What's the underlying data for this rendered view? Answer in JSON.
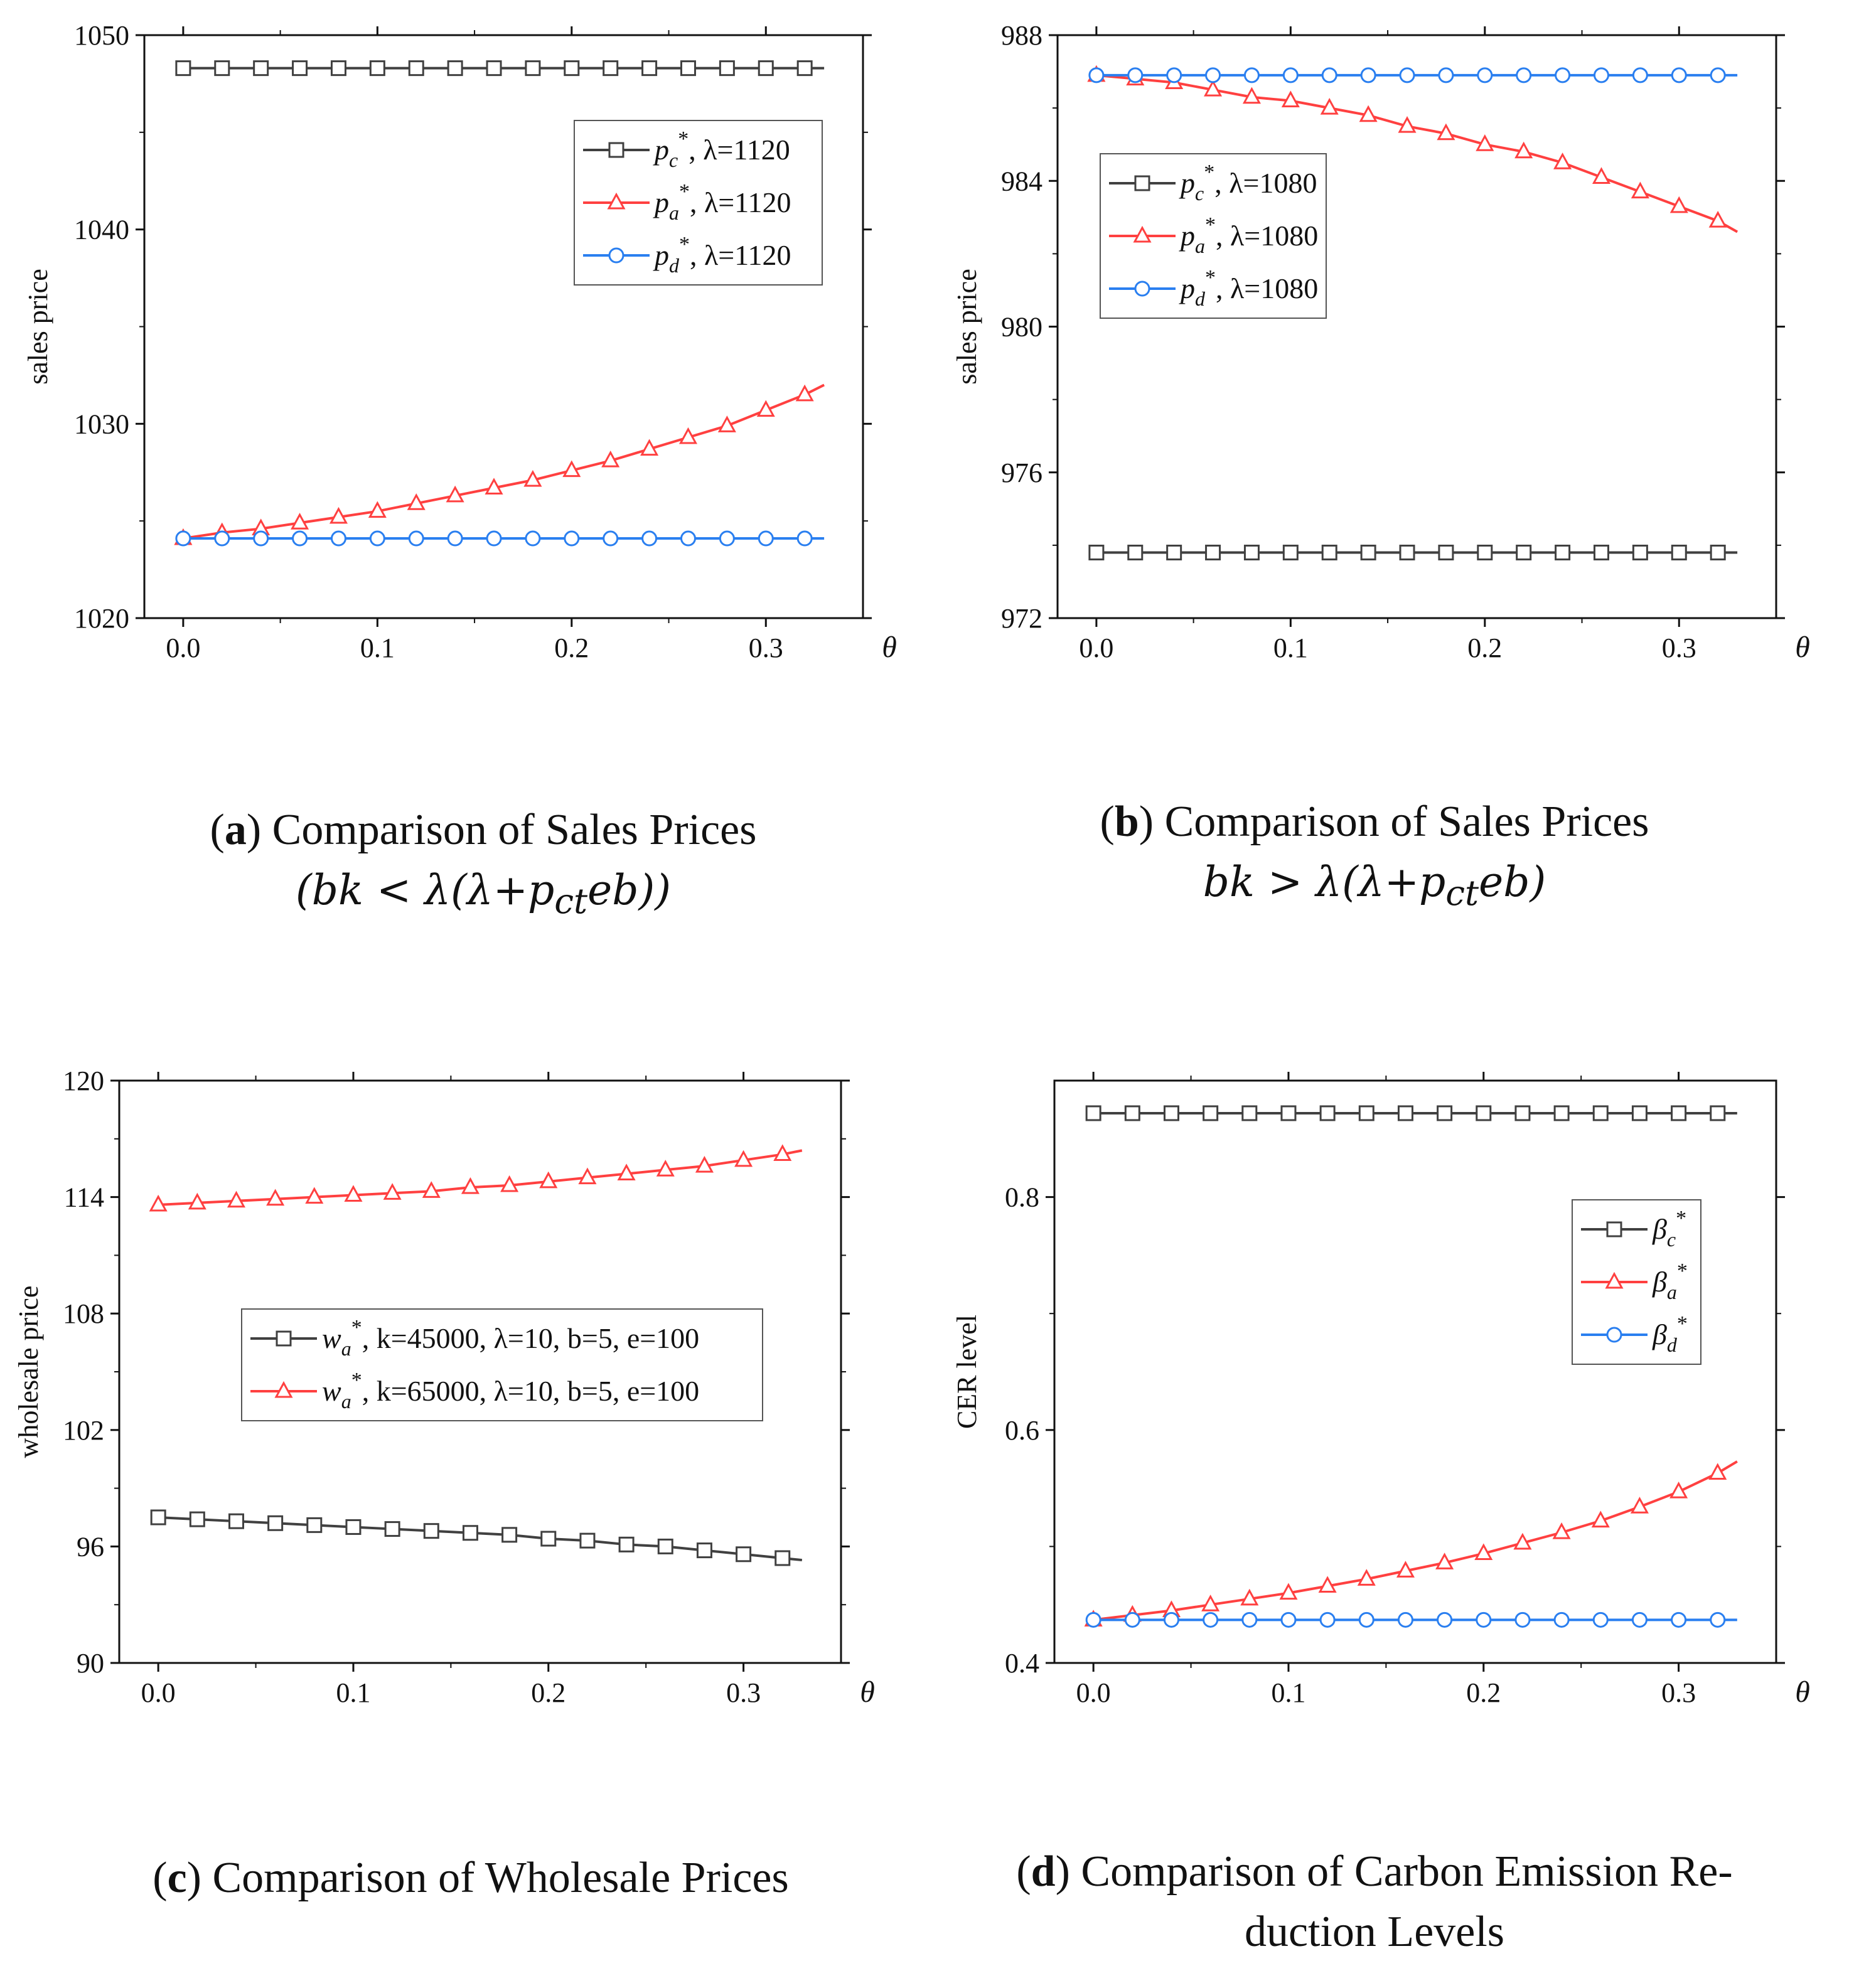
{
  "chart_data": [
    {
      "id": "a",
      "type": "line",
      "ylabel": "sales price",
      "xlabel": "θ",
      "xlim": [
        -0.02,
        0.35
      ],
      "ylim": [
        1020,
        1050
      ],
      "xticks": [
        "0.0",
        "0.1",
        "0.2",
        "0.3"
      ],
      "xtick_values": [
        0,
        0.1,
        0.2,
        0.3
      ],
      "yticks": [
        "1020",
        "1030",
        "1040",
        "1050"
      ],
      "ytick_values": [
        1020,
        1030,
        1040,
        1050
      ],
      "legend_position": "top-right",
      "x": [
        0,
        0.02,
        0.04,
        0.06,
        0.08,
        0.1,
        0.12,
        0.14,
        0.16,
        0.18,
        0.2,
        0.22,
        0.24,
        0.26,
        0.28,
        0.3,
        0.32,
        0.33
      ],
      "series": [
        {
          "name": "p_c*, λ=1120",
          "symbol": "p",
          "sub": "c",
          "label": ", λ=1120",
          "color": "#404040",
          "marker": "square",
          "values": [
            1048.3,
            1048.3,
            1048.3,
            1048.3,
            1048.3,
            1048.3,
            1048.3,
            1048.3,
            1048.3,
            1048.3,
            1048.3,
            1048.3,
            1048.3,
            1048.3,
            1048.3,
            1048.3,
            1048.3,
            1048.3
          ]
        },
        {
          "name": "p_a*, λ=1120",
          "symbol": "p",
          "sub": "a",
          "label": ", λ=1120",
          "color": "#ff4040",
          "marker": "triangle",
          "values": [
            1024.1,
            1024.4,
            1024.6,
            1024.9,
            1025.2,
            1025.5,
            1025.9,
            1026.3,
            1026.7,
            1027.1,
            1027.6,
            1028.1,
            1028.7,
            1029.3,
            1029.9,
            1030.7,
            1031.5,
            1032.0
          ]
        },
        {
          "name": "p_d*, λ=1120",
          "symbol": "p",
          "sub": "d",
          "label": ", λ=1120",
          "color": "#2a7ff0",
          "marker": "circle",
          "values": [
            1024.1,
            1024.1,
            1024.1,
            1024.1,
            1024.1,
            1024.1,
            1024.1,
            1024.1,
            1024.1,
            1024.1,
            1024.1,
            1024.1,
            1024.1,
            1024.1,
            1024.1,
            1024.1,
            1024.1,
            1024.1
          ]
        }
      ]
    },
    {
      "id": "b",
      "type": "line",
      "ylabel": "sales price",
      "xlabel": "θ",
      "xlim": [
        -0.02,
        0.35
      ],
      "ylim": [
        972,
        988
      ],
      "xticks": [
        "0.0",
        "0.1",
        "0.2",
        "0.3"
      ],
      "xtick_values": [
        0,
        0.1,
        0.2,
        0.3
      ],
      "yticks": [
        "972",
        "976",
        "980",
        "984",
        "988"
      ],
      "ytick_values": [
        972,
        976,
        980,
        984,
        988
      ],
      "legend_position": "top-left",
      "x": [
        0,
        0.02,
        0.04,
        0.06,
        0.08,
        0.1,
        0.12,
        0.14,
        0.16,
        0.18,
        0.2,
        0.22,
        0.24,
        0.26,
        0.28,
        0.3,
        0.32,
        0.33
      ],
      "series": [
        {
          "name": "p_c*, λ=1080",
          "symbol": "p",
          "sub": "c",
          "label": ", λ=1080",
          "color": "#404040",
          "marker": "square",
          "values": [
            973.8,
            973.8,
            973.8,
            973.8,
            973.8,
            973.8,
            973.8,
            973.8,
            973.8,
            973.8,
            973.8,
            973.8,
            973.8,
            973.8,
            973.8,
            973.8,
            973.8,
            973.8
          ]
        },
        {
          "name": "p_a*, λ=1080",
          "symbol": "p",
          "sub": "a",
          "label": ", λ=1080",
          "color": "#ff4040",
          "marker": "triangle",
          "values": [
            986.9,
            986.8,
            986.7,
            986.5,
            986.3,
            986.2,
            986.0,
            985.8,
            985.5,
            985.3,
            985.0,
            984.8,
            984.5,
            984.1,
            983.7,
            983.3,
            982.9,
            982.6
          ]
        },
        {
          "name": "p_d*, λ=1080",
          "symbol": "p",
          "sub": "d",
          "label": ", λ=1080",
          "color": "#2a7ff0",
          "marker": "circle",
          "values": [
            986.9,
            986.9,
            986.9,
            986.9,
            986.9,
            986.9,
            986.9,
            986.9,
            986.9,
            986.9,
            986.9,
            986.9,
            986.9,
            986.9,
            986.9,
            986.9,
            986.9,
            986.9
          ]
        }
      ]
    },
    {
      "id": "c",
      "type": "line",
      "ylabel": "wholesale price",
      "xlabel": "θ",
      "xlim": [
        -0.02,
        0.35
      ],
      "ylim": [
        90,
        120
      ],
      "xticks": [
        "0.0",
        "0.1",
        "0.2",
        "0.3"
      ],
      "xtick_values": [
        0,
        0.1,
        0.2,
        0.3
      ],
      "yticks": [
        "90",
        "96",
        "102",
        "108",
        "114",
        "120"
      ],
      "ytick_values": [
        90,
        96,
        102,
        108,
        114,
        120
      ],
      "legend_position": "center",
      "x": [
        0,
        0.02,
        0.04,
        0.06,
        0.08,
        0.1,
        0.12,
        0.14,
        0.16,
        0.18,
        0.2,
        0.22,
        0.24,
        0.26,
        0.28,
        0.3,
        0.32,
        0.33
      ],
      "series": [
        {
          "name": "w_a*, k=45000, λ=10, b=5, e=100",
          "symbol": "w",
          "sub": "a",
          "label": ", k=45000, λ=10, b=5, e=100",
          "color": "#404040",
          "marker": "square",
          "values": [
            97.5,
            97.4,
            97.3,
            97.2,
            97.1,
            97.0,
            96.9,
            96.8,
            96.7,
            96.6,
            96.4,
            96.3,
            96.1,
            96.0,
            95.8,
            95.6,
            95.4,
            95.3
          ]
        },
        {
          "name": "w_a*, k=65000, λ=10, b=5, e=100",
          "symbol": "w",
          "sub": "a",
          "label": ", k=65000, λ=10, b=5, e=100",
          "color": "#ff4040",
          "marker": "triangle",
          "values": [
            113.6,
            113.7,
            113.8,
            113.9,
            114.0,
            114.1,
            114.2,
            114.3,
            114.5,
            114.6,
            114.8,
            115.0,
            115.2,
            115.4,
            115.6,
            115.9,
            116.2,
            116.4
          ]
        }
      ]
    },
    {
      "id": "d",
      "type": "line",
      "ylabel": "CER level",
      "xlabel": "θ",
      "xlim": [
        -0.02,
        0.35
      ],
      "ylim": [
        0.4,
        0.9
      ],
      "xticks": [
        "0.0",
        "0.1",
        "0.2",
        "0.3"
      ],
      "xtick_values": [
        0,
        0.1,
        0.2,
        0.3
      ],
      "yticks": [
        "0.4",
        "0.6",
        "0.8"
      ],
      "ytick_values": [
        0.4,
        0.6,
        0.8
      ],
      "legend_position": "right",
      "x": [
        0,
        0.02,
        0.04,
        0.06,
        0.08,
        0.1,
        0.12,
        0.14,
        0.16,
        0.18,
        0.2,
        0.22,
        0.24,
        0.26,
        0.28,
        0.3,
        0.32,
        0.33
      ],
      "series": [
        {
          "name": "β_c*",
          "symbol": "β",
          "sub": "c",
          "label": "",
          "color": "#404040",
          "marker": "square",
          "values": [
            0.872,
            0.872,
            0.872,
            0.872,
            0.872,
            0.872,
            0.872,
            0.872,
            0.872,
            0.872,
            0.872,
            0.872,
            0.872,
            0.872,
            0.872,
            0.872,
            0.872,
            0.872
          ]
        },
        {
          "name": "β_a*",
          "symbol": "β",
          "sub": "a",
          "label": "",
          "color": "#ff4040",
          "marker": "triangle",
          "values": [
            0.437,
            0.441,
            0.445,
            0.45,
            0.455,
            0.46,
            0.466,
            0.472,
            0.479,
            0.486,
            0.494,
            0.503,
            0.512,
            0.522,
            0.534,
            0.547,
            0.563,
            0.573
          ]
        },
        {
          "name": "β_d*",
          "symbol": "β",
          "sub": "d",
          "label": "",
          "color": "#2a7ff0",
          "marker": "circle",
          "values": [
            0.437,
            0.437,
            0.437,
            0.437,
            0.437,
            0.437,
            0.437,
            0.437,
            0.437,
            0.437,
            0.437,
            0.437,
            0.437,
            0.437,
            0.437,
            0.437,
            0.437,
            0.437
          ]
        }
      ]
    }
  ],
  "captions": {
    "a": {
      "letter": "a",
      "text": ") Comparison of Sales Prices",
      "formula": "(bk < λ(λ+p",
      "formula_sub": "ct",
      "formula_end": "eb))"
    },
    "b": {
      "letter": "b",
      "text": ") Comparison of Sales Prices",
      "formula": "bk > λ(λ+p",
      "formula_sub": "ct",
      "formula_end": "eb)"
    },
    "c": {
      "letter": "c",
      "text": ") Comparison of Wholesale Prices"
    },
    "d": {
      "letter": "d",
      "text": ") Comparison of Carbon Emission Re-",
      "line2": "duction Levels"
    }
  }
}
